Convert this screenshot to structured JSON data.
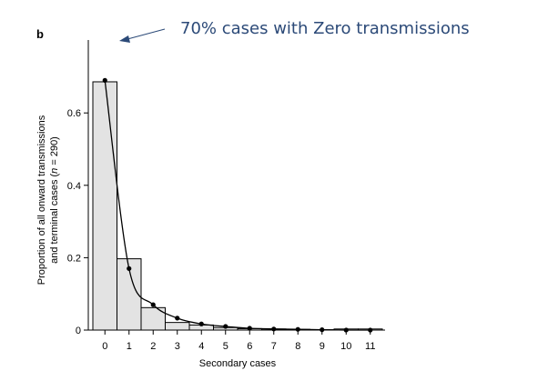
{
  "panel_label": "b",
  "annotation": {
    "text": "70% cases with Zero transmissions",
    "color": "#2c4a78"
  },
  "chart_data": {
    "type": "bar",
    "categories": [
      "0",
      "1",
      "2",
      "3",
      "4",
      "5",
      "6",
      "7",
      "8",
      "9",
      "10",
      "11"
    ],
    "values": [
      0.686,
      0.197,
      0.062,
      0.021,
      0.014,
      0.007,
      0.004,
      0.003,
      0.002,
      0.001,
      0.003,
      0.003
    ],
    "fit_series": {
      "x": [
        0,
        1,
        2,
        3,
        4,
        5,
        6,
        7,
        8,
        9,
        10,
        11
      ],
      "values": [
        0.69,
        0.17,
        0.07,
        0.033,
        0.017,
        0.01,
        0.005,
        0.003,
        0.002,
        0.001,
        0.0,
        0.0
      ]
    },
    "xlabel": "Secondary cases",
    "ylabel_line1": "Proportion of all onward transmissions",
    "ylabel_line2_pre": "and terminal cases (",
    "ylabel_line2_n": "n",
    "ylabel_line2_post": " = 290)",
    "y_ticks": [
      "0",
      "0.2",
      "0.4",
      "0.6"
    ],
    "y_tick_values": [
      0,
      0.2,
      0.4,
      0.6
    ],
    "ylim": [
      0,
      0.7
    ],
    "bar_color": "#e3e3e3",
    "grid": false
  }
}
